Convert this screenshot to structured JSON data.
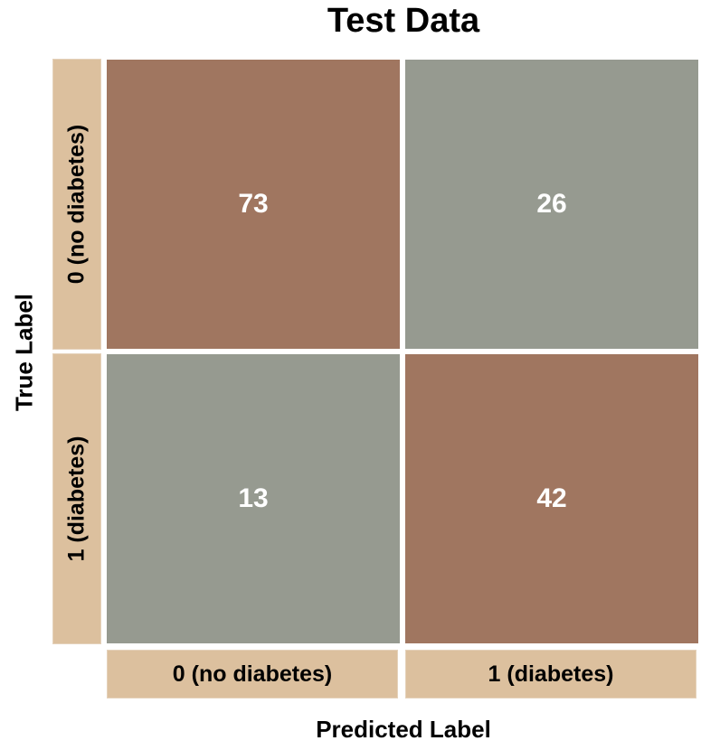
{
  "chart_data": {
    "type": "heatmap",
    "title": "Test Data",
    "xlabel": "Predicted Label",
    "ylabel": "True Label",
    "x_categories": [
      "0 (no diabetes)",
      "1 (diabetes)"
    ],
    "y_categories": [
      "0 (no diabetes)",
      "1 (diabetes)"
    ],
    "values": [
      [
        73,
        26
      ],
      [
        13,
        42
      ]
    ],
    "colors": {
      "correct": "#a07660",
      "incorrect": "#969a90",
      "strip": "#dcc09e"
    }
  }
}
